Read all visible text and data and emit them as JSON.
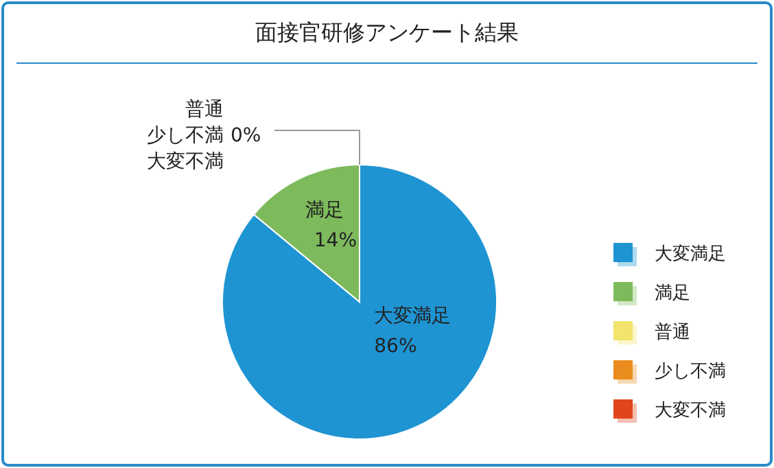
{
  "chart_data": {
    "type": "pie",
    "title": "面接官研修アンケート結果",
    "categories": [
      "大変満足",
      "満足",
      "普通",
      "少し不満",
      "大変不満"
    ],
    "values": [
      86,
      14,
      0,
      0,
      0
    ],
    "colors": [
      "#1e94d2",
      "#7dba5c",
      "#f2e46c",
      "#ea8c1e",
      "#e0461e"
    ],
    "value_labels": [
      "86%",
      "14%",
      null,
      "0%",
      null
    ],
    "legend": "right"
  }
}
